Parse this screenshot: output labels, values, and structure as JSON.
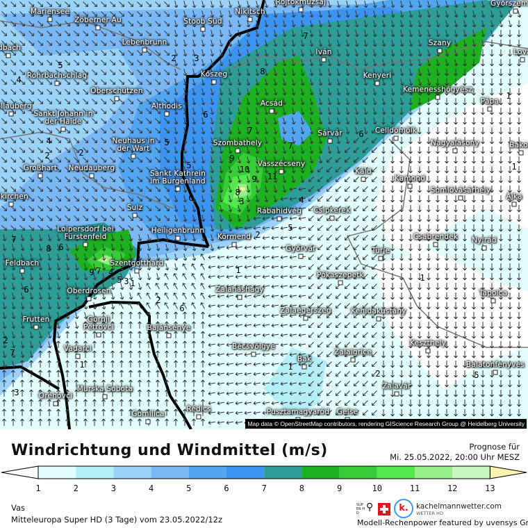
{
  "legend_title": "Windrichtung und Windmittel (m/s)",
  "forecast": {
    "label": "Prognose für",
    "datetime": "Mi. 25.05.2022, 20:00 Uhr MESZ"
  },
  "region": "Vas",
  "model_run": "Mitteleuropa Super HD (3 Tage) vom  23.05.2022/12z",
  "attribution": "Map data © OpenStreetMap contributors, rendering GIScience Research Group @ Heidelberg University",
  "branding": {
    "site": "kachelmannwetter.com",
    "sub": "WETTER HD",
    "super_hd": "SUPER HD",
    "logo_letter": "k.",
    "power": "Modell-Rechenpower featured by uvensys GmbH"
  },
  "scale": {
    "ticks": [
      "1",
      "2",
      "3",
      "4",
      "5",
      "6",
      "7",
      "8",
      "9",
      "10",
      "11",
      "12",
      "13"
    ],
    "colors": [
      "#e0fcfc",
      "#b4eef8",
      "#9ad2f8",
      "#7ab8f5",
      "#52a5f0",
      "#3c94f0",
      "#2e9c97",
      "#1db020",
      "#38cc38",
      "#52e84e",
      "#98f08a",
      "#c8f8c0"
    ],
    "below_color": "#ffffff",
    "above_color": "#f8f4b0"
  },
  "towns": [
    "Mariensee",
    "Zöberner Au",
    "Stoob Süd",
    "Nikitsch",
    "Rojtokmuzsaj",
    "Győrszemere",
    "Lebenbrunn",
    "Iván",
    "Szany",
    "Lova",
    "ldbach",
    "Rohrbachschlag",
    "Kőszeg",
    "Kenyeri",
    "Oberschützen",
    "Althodis",
    "Kemenesshőgyész",
    "Pápa",
    "Acsád",
    "Göllauberg",
    "Sankt Johann in der Haide",
    "Sárvár",
    "Celldömölk",
    "Szombathely",
    "Nagyalásony",
    "Bakon",
    "Neuhaus in der Wart",
    "Vasszécseny",
    "Großhart",
    "Neudauberg",
    "Káld",
    "Kamond",
    "Sankt Kathrein im Burgenland",
    "Somlóvásárhely",
    "Ajka",
    "elkirchen",
    "Sulz",
    "Rábahidvég",
    "Csipkerek",
    "Loipersdorf bei Fürstenfeld",
    "Heiligenbrunn",
    "Körmend",
    "Csabrendek",
    "Nyirád",
    "Győrvár",
    "Türje",
    "Feldbach",
    "Szentgotthárd",
    "Pókaszepetk",
    "Oberdrosen",
    "Zalaháshágy",
    "Zalaegerszeg",
    "Kehidakustány",
    "Tapolca",
    "Frutten",
    "Gornji Petrovci",
    "Bajánsenye",
    "Keszthely",
    "Vadarci",
    "Bécsvölgye",
    "Zalaigrice",
    "Bak",
    "Balatonfenyves",
    "Murska Sobota",
    "Zalavár",
    "Orehovci",
    "Gomilica",
    "Rédics",
    "Pusztamagyaród",
    "Gelse"
  ],
  "contour_labels": [
    "2",
    "3",
    "4",
    "5",
    "4",
    "2",
    "2",
    "5",
    "5",
    "6",
    "6",
    "7",
    "8",
    "7",
    "6",
    "7",
    "9",
    "10",
    "9",
    "11",
    "8",
    "3",
    "4",
    "5",
    "2",
    "1",
    "2",
    "1",
    "1",
    "1",
    "1",
    "2",
    "1",
    "5",
    "6",
    "7",
    "8",
    "9",
    "7",
    "4",
    "5",
    "3",
    "1",
    "6",
    "6",
    "7",
    "2",
    "3"
  ]
}
